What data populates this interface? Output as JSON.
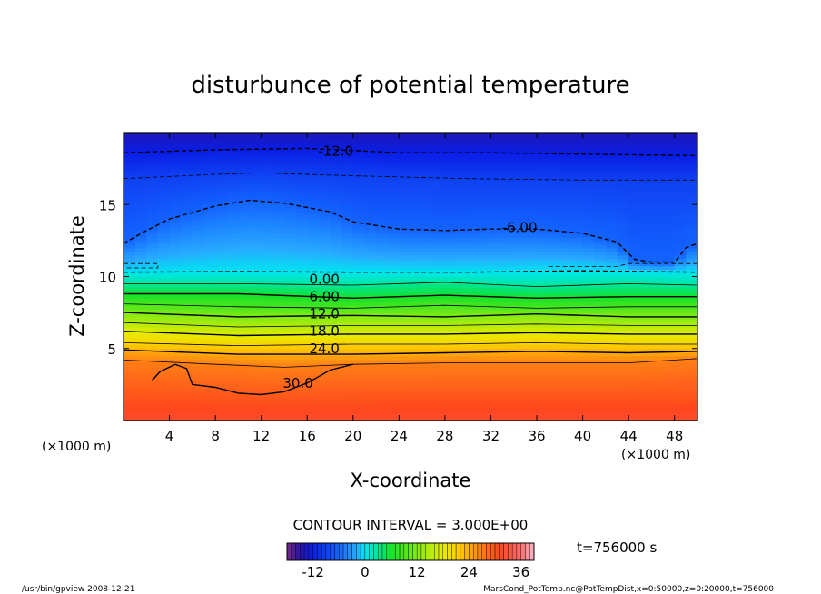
{
  "chart_data": {
    "type": "heatmap",
    "title": "disturbunce of potential temperature",
    "xlabel": "X-coordinate",
    "ylabel": "Z-coordinate",
    "x_unit_left": "(×1000 m)",
    "x_unit_right": "(×1000 m)",
    "xlim": [
      0,
      50
    ],
    "ylim": [
      0,
      20
    ],
    "x_ticks": [
      4,
      8,
      12,
      16,
      20,
      24,
      28,
      32,
      36,
      40,
      44,
      48
    ],
    "y_ticks": [
      5,
      10,
      15
    ],
    "colorscale": {
      "range": [
        -18,
        39
      ],
      "ticks": [
        -12,
        0,
        12,
        24,
        36
      ]
    },
    "contour_interval_text": "CONTOUR INTERVAL = 3.000E+00",
    "time_label": "t=756000 s",
    "contour_labels": [
      {
        "text": "-12.0",
        "x": 18.5,
        "z": 18.7
      },
      {
        "text": "-6.00",
        "x": 34.5,
        "z": 13.4
      },
      {
        "text": "0.00",
        "x": 17.5,
        "z": 9.8
      },
      {
        "text": "6.00",
        "x": 17.5,
        "z": 8.6
      },
      {
        "text": "12.0",
        "x": 17.5,
        "z": 7.4
      },
      {
        "text": "18.0",
        "x": 17.5,
        "z": 6.2
      },
      {
        "text": "24.0",
        "x": 17.5,
        "z": 5.0
      },
      {
        "text": "30.0",
        "x": 15.2,
        "z": 2.6
      }
    ],
    "contours": [
      {
        "level": -12,
        "style": "dashed",
        "points": [
          [
            0,
            18.6
          ],
          [
            8,
            18.8
          ],
          [
            16,
            18.9
          ],
          [
            24,
            18.6
          ],
          [
            32,
            18.6
          ],
          [
            40,
            18.5
          ],
          [
            50,
            18.4
          ]
        ]
      },
      {
        "level": -9,
        "style": "dashed",
        "points": [
          [
            0,
            16.8
          ],
          [
            8,
            17.1
          ],
          [
            12,
            17.2
          ],
          [
            20,
            17.0
          ],
          [
            30,
            16.8
          ],
          [
            40,
            16.7
          ],
          [
            50,
            16.7
          ]
        ]
      },
      {
        "level": -6,
        "style": "dashed",
        "points": [
          [
            0,
            12.3
          ],
          [
            2,
            13.2
          ],
          [
            4,
            14.0
          ],
          [
            8,
            14.9
          ],
          [
            11,
            15.3
          ],
          [
            14,
            15.1
          ],
          [
            18,
            14.5
          ],
          [
            20,
            13.8
          ],
          [
            24,
            13.3
          ],
          [
            28,
            13.2
          ],
          [
            32,
            13.3
          ],
          [
            36,
            13.3
          ],
          [
            40,
            13.0
          ],
          [
            43,
            12.4
          ],
          [
            44.5,
            11.2
          ],
          [
            46,
            11.0
          ],
          [
            48,
            11.0
          ],
          [
            49,
            12.0
          ],
          [
            50,
            12.3
          ]
        ]
      },
      {
        "level": -3,
        "style": "dashed",
        "points": [
          [
            0,
            10.9
          ],
          [
            3,
            10.9
          ],
          [
            3,
            10.6
          ],
          [
            0,
            10.6
          ]
        ]
      },
      {
        "level": -3,
        "style": "dashed",
        "points": [
          [
            37,
            10.7
          ],
          [
            43,
            10.7
          ],
          [
            44,
            10.9
          ],
          [
            50,
            10.9
          ]
        ]
      },
      {
        "level": 0,
        "style": "dashed",
        "points": [
          [
            0,
            10.3
          ],
          [
            10,
            10.35
          ],
          [
            20,
            10.3
          ],
          [
            30,
            10.3
          ],
          [
            40,
            10.4
          ],
          [
            50,
            10.3
          ]
        ]
      },
      {
        "level": 3,
        "style": "solid",
        "points": [
          [
            0,
            9.5
          ],
          [
            10,
            9.5
          ],
          [
            20,
            9.4
          ],
          [
            28,
            9.6
          ],
          [
            36,
            9.3
          ],
          [
            44,
            9.5
          ],
          [
            50,
            9.4
          ]
        ]
      },
      {
        "level": 6,
        "style": "solid",
        "points": [
          [
            0,
            8.8
          ],
          [
            10,
            8.8
          ],
          [
            20,
            8.5
          ],
          [
            28,
            8.7
          ],
          [
            36,
            8.5
          ],
          [
            44,
            8.6
          ],
          [
            50,
            8.6
          ]
        ]
      },
      {
        "level": 9,
        "style": "solid",
        "points": [
          [
            0,
            8.1
          ],
          [
            10,
            7.9
          ],
          [
            20,
            7.8
          ],
          [
            28,
            8.0
          ],
          [
            36,
            7.8
          ],
          [
            44,
            7.9
          ],
          [
            50,
            7.9
          ]
        ]
      },
      {
        "level": 12,
        "style": "solid",
        "points": [
          [
            0,
            7.5
          ],
          [
            10,
            7.2
          ],
          [
            20,
            7.3
          ],
          [
            28,
            7.2
          ],
          [
            36,
            7.4
          ],
          [
            44,
            7.2
          ],
          [
            50,
            7.2
          ]
        ]
      },
      {
        "level": 15,
        "style": "solid",
        "points": [
          [
            0,
            6.8
          ],
          [
            10,
            6.5
          ],
          [
            20,
            6.6
          ],
          [
            28,
            6.6
          ],
          [
            36,
            6.7
          ],
          [
            44,
            6.6
          ],
          [
            50,
            6.6
          ]
        ]
      },
      {
        "level": 18,
        "style": "solid",
        "points": [
          [
            0,
            6.2
          ],
          [
            10,
            5.9
          ],
          [
            20,
            6.0
          ],
          [
            28,
            6.0
          ],
          [
            36,
            6.1
          ],
          [
            44,
            6.0
          ],
          [
            50,
            6.0
          ]
        ]
      },
      {
        "level": 21,
        "style": "solid",
        "points": [
          [
            0,
            5.4
          ],
          [
            10,
            5.2
          ],
          [
            20,
            5.3
          ],
          [
            28,
            5.3
          ],
          [
            36,
            5.4
          ],
          [
            44,
            5.3
          ],
          [
            50,
            5.3
          ]
        ]
      },
      {
        "level": 24,
        "style": "solid",
        "points": [
          [
            0,
            4.9
          ],
          [
            10,
            4.6
          ],
          [
            20,
            4.6
          ],
          [
            28,
            4.7
          ],
          [
            36,
            4.8
          ],
          [
            44,
            4.7
          ],
          [
            50,
            4.8
          ]
        ]
      },
      {
        "level": 27,
        "style": "solid",
        "points": [
          [
            0,
            4.2
          ],
          [
            8,
            3.9
          ],
          [
            14,
            3.7
          ],
          [
            20,
            3.9
          ],
          [
            28,
            4.0
          ],
          [
            36,
            4.0
          ],
          [
            44,
            4.0
          ],
          [
            50,
            4.3
          ]
        ]
      },
      {
        "level": 30,
        "style": "solid",
        "points": [
          [
            2.5,
            2.8
          ],
          [
            3.2,
            3.4
          ],
          [
            4.5,
            3.9
          ],
          [
            5.5,
            3.6
          ],
          [
            6,
            2.5
          ],
          [
            8,
            2.3
          ],
          [
            10,
            1.9
          ],
          [
            12,
            1.8
          ],
          [
            14,
            2.0
          ],
          [
            16,
            2.6
          ],
          [
            18,
            3.5
          ],
          [
            20,
            3.9
          ]
        ]
      }
    ]
  },
  "footer": {
    "left": "/usr/bin/gpview   2008-12-21",
    "right": "MarsCond_PotTemp.nc@PotTempDist,x=0:50000,z=0:20000,t=756000"
  }
}
